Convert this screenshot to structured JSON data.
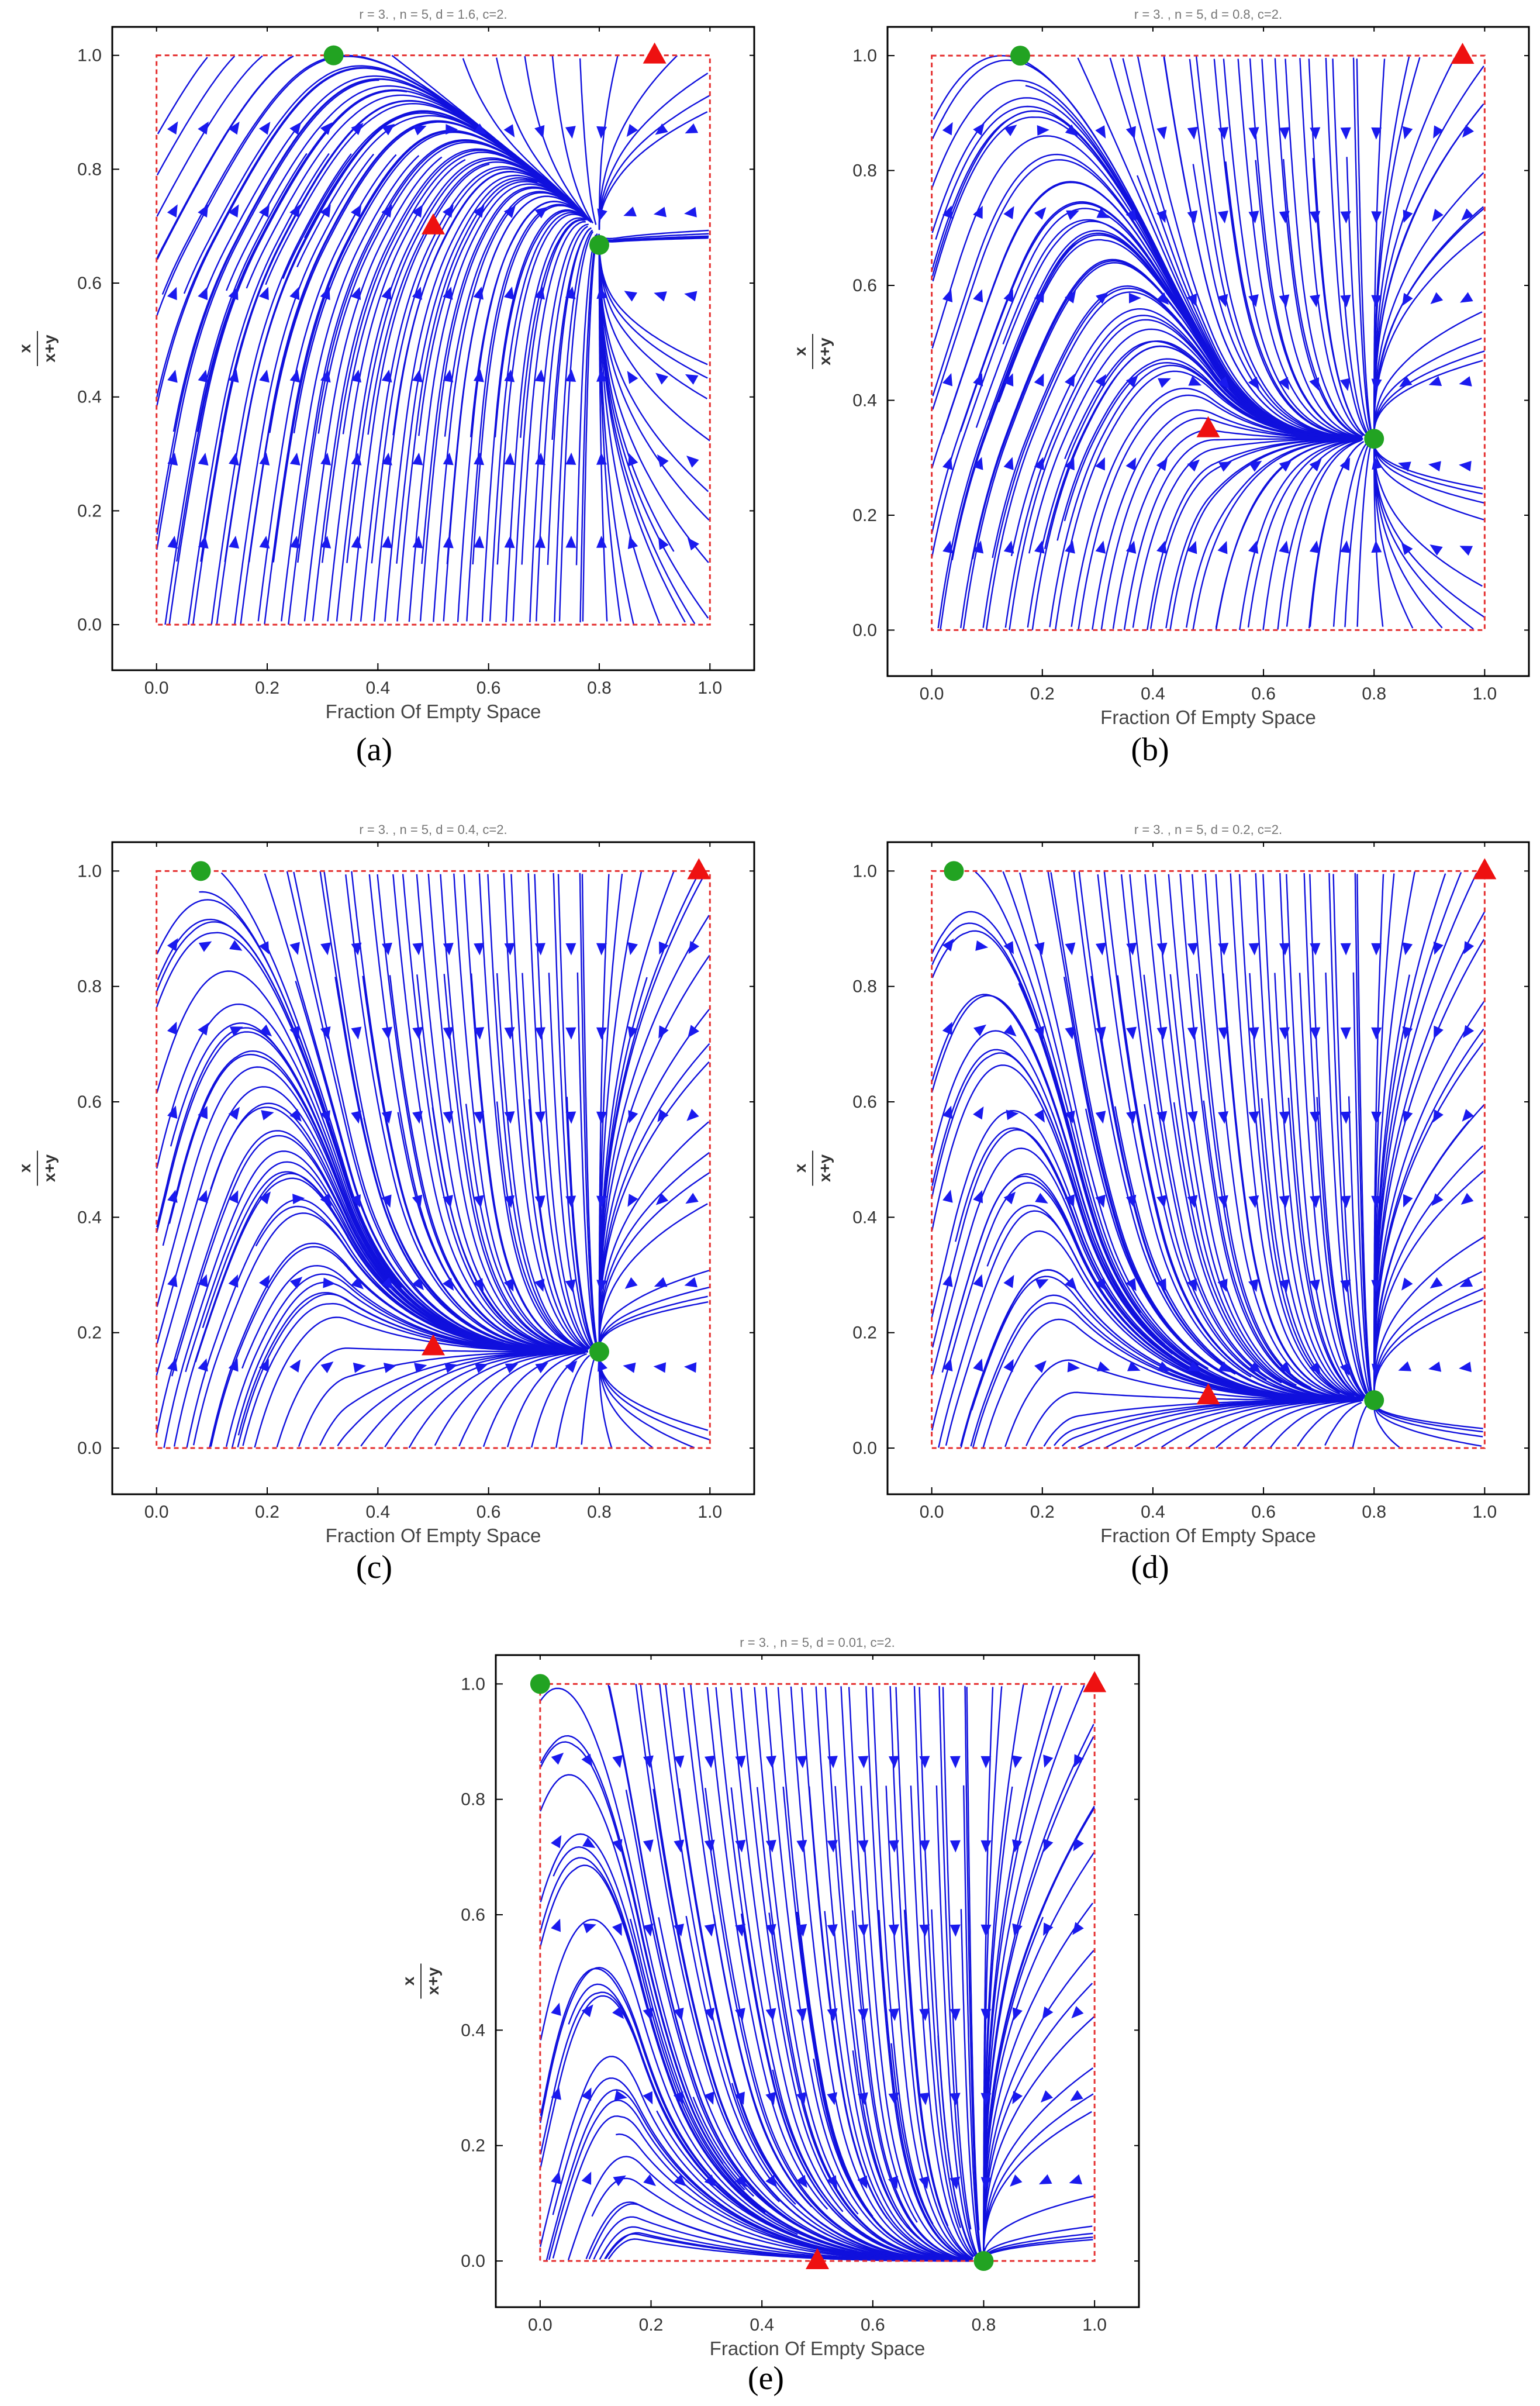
{
  "colors": {
    "stream": "#1010dd",
    "arrow": "#1a1aee",
    "box": "#e53030",
    "stable": "#22a322",
    "unstable": "#ee1111",
    "frame": "#000000"
  },
  "chart_data": [
    {
      "type": "streamplot",
      "panel_label": "(a)",
      "title": "r = 3. , n = 5, d = 1.6, c=2.",
      "xlabel": "Fraction Of Empty Space",
      "ylabel_num": "x",
      "ylabel_den": "x+y",
      "xlim": [
        -0.08,
        1.08
      ],
      "ylim": [
        -0.08,
        1.05
      ],
      "xticks": [
        "0.0",
        "0.2",
        "0.4",
        "0.6",
        "0.8",
        "1.0"
      ],
      "yticks": [
        "0.0",
        "0.2",
        "0.4",
        "0.6",
        "0.8",
        "1.0"
      ],
      "params": {
        "r": 3,
        "n": 5,
        "d": 1.6,
        "c": 2
      },
      "stable_points": [
        {
          "x": 0.32,
          "y": 1.0
        },
        {
          "x": 0.8,
          "y": 0.667
        }
      ],
      "unstable_points": [
        {
          "x": 0.5,
          "y": 0.7
        },
        {
          "x": 0.9,
          "y": 1.0
        }
      ]
    },
    {
      "type": "streamplot",
      "panel_label": "(b)",
      "title": "r = 3. , n = 5, d = 0.8, c=2.",
      "xlabel": "Fraction Of Empty Space",
      "ylabel_num": "x",
      "ylabel_den": "x+y",
      "xlim": [
        -0.08,
        1.08
      ],
      "ylim": [
        -0.08,
        1.05
      ],
      "xticks": [
        "0.0",
        "0.2",
        "0.4",
        "0.6",
        "0.8",
        "1.0"
      ],
      "yticks": [
        "0.0",
        "0.2",
        "0.4",
        "0.6",
        "0.8",
        "1.0"
      ],
      "params": {
        "r": 3,
        "n": 5,
        "d": 0.8,
        "c": 2
      },
      "stable_points": [
        {
          "x": 0.16,
          "y": 1.0
        },
        {
          "x": 0.8,
          "y": 0.333
        }
      ],
      "unstable_points": [
        {
          "x": 0.5,
          "y": 0.35
        },
        {
          "x": 0.96,
          "y": 1.0
        }
      ]
    },
    {
      "type": "streamplot",
      "panel_label": "(c)",
      "title": "r = 3. , n = 5, d = 0.4, c=2.",
      "xlabel": "Fraction Of Empty Space",
      "ylabel_num": "x",
      "ylabel_den": "x+y",
      "xlim": [
        -0.08,
        1.08
      ],
      "ylim": [
        -0.08,
        1.05
      ],
      "xticks": [
        "0.0",
        "0.2",
        "0.4",
        "0.6",
        "0.8",
        "1.0"
      ],
      "yticks": [
        "0.0",
        "0.2",
        "0.4",
        "0.6",
        "0.8",
        "1.0"
      ],
      "params": {
        "r": 3,
        "n": 5,
        "d": 0.4,
        "c": 2
      },
      "stable_points": [
        {
          "x": 0.08,
          "y": 1.0
        },
        {
          "x": 0.8,
          "y": 0.167
        }
      ],
      "unstable_points": [
        {
          "x": 0.5,
          "y": 0.175
        },
        {
          "x": 0.98,
          "y": 1.0
        }
      ]
    },
    {
      "type": "streamplot",
      "panel_label": "(d)",
      "title": "r = 3. , n = 5, d = 0.2, c=2.",
      "xlabel": "Fraction Of Empty Space",
      "ylabel_num": "x",
      "ylabel_den": "x+y",
      "xlim": [
        -0.08,
        1.08
      ],
      "ylim": [
        -0.08,
        1.05
      ],
      "xticks": [
        "0.0",
        "0.2",
        "0.4",
        "0.6",
        "0.8",
        "1.0"
      ],
      "yticks": [
        "0.0",
        "0.2",
        "0.4",
        "0.6",
        "0.8",
        "1.0"
      ],
      "params": {
        "r": 3,
        "n": 5,
        "d": 0.2,
        "c": 2
      },
      "stable_points": [
        {
          "x": 0.04,
          "y": 1.0
        },
        {
          "x": 0.8,
          "y": 0.083
        }
      ],
      "unstable_points": [
        {
          "x": 0.5,
          "y": 0.09
        },
        {
          "x": 1.0,
          "y": 1.0
        }
      ]
    },
    {
      "type": "streamplot",
      "panel_label": "(e)",
      "title": "r = 3. , n = 5, d = 0.01, c=2.",
      "xlabel": "Fraction Of Empty Space",
      "ylabel_num": "x",
      "ylabel_den": "x+y",
      "xlim": [
        -0.08,
        1.08
      ],
      "ylim": [
        -0.08,
        1.05
      ],
      "xticks": [
        "0.0",
        "0.2",
        "0.4",
        "0.6",
        "0.8",
        "1.0"
      ],
      "yticks": [
        "0.0",
        "0.2",
        "0.4",
        "0.6",
        "0.8",
        "1.0"
      ],
      "params": {
        "r": 3,
        "n": 5,
        "d": 0.01,
        "c": 2
      },
      "stable_points": [
        {
          "x": 0.0,
          "y": 1.0
        },
        {
          "x": 0.8,
          "y": 0.0
        }
      ],
      "unstable_points": [
        {
          "x": 0.5,
          "y": 0.0
        },
        {
          "x": 1.0,
          "y": 1.0
        }
      ]
    }
  ]
}
